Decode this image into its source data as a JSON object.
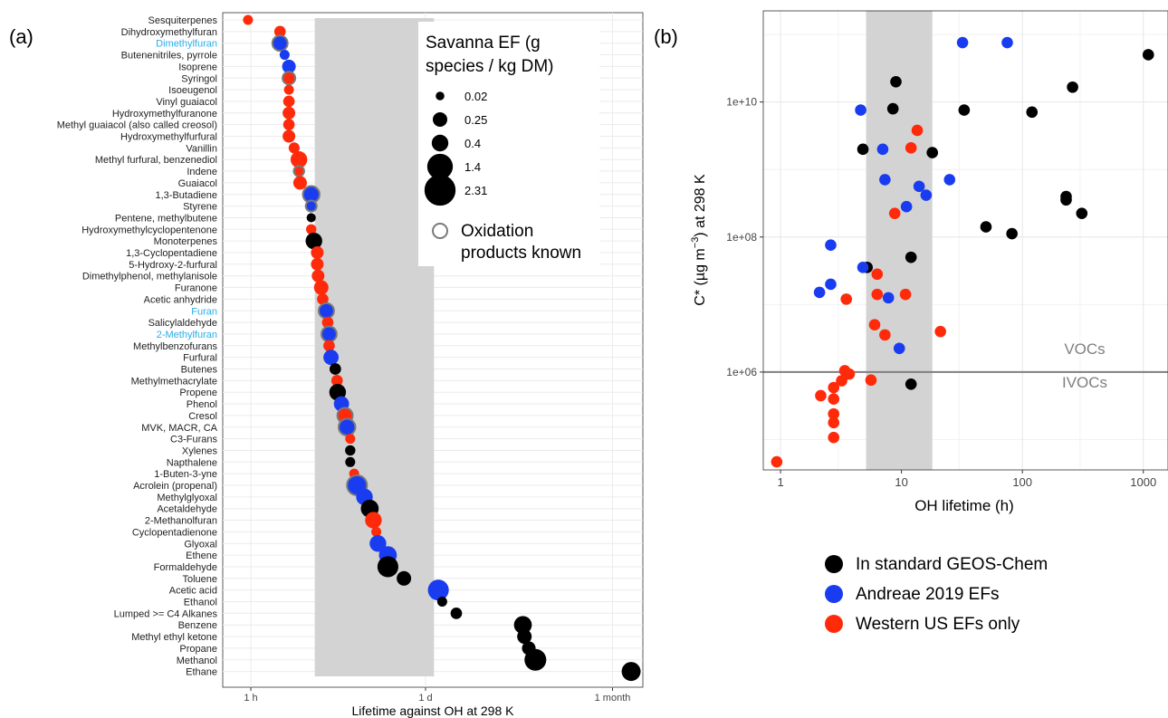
{
  "chart_data": [
    {
      "type": "scatter",
      "panel_label": "(a)",
      "xlabel": "Lifetime against OH at 298 K",
      "x_scale": "log",
      "x_ticks": [
        {
          "label": "1 h",
          "hours": 1
        },
        {
          "label": "1 d",
          "hours": 24
        },
        {
          "label": "1 month",
          "hours": 720
        }
      ],
      "xlim_hours": [
        0.6,
        1250
      ],
      "shaded_band_hours": [
        3.2,
        28
      ],
      "colors": {
        "standard": "#000000",
        "andreae": "#1a3cf0",
        "western": "#ff2a0a",
        "highlight_label": "#29aee6",
        "ring": "#7a7a7a",
        "band": "#d3d3d3",
        "grid": "#ebebeb"
      },
      "size_legend": {
        "title": "Savanna EF (g species / kg DM)",
        "title_lines": [
          "Savanna EF (g",
          "species / kg DM)"
        ],
        "entries": [
          {
            "label": "0.02",
            "value": 0.02
          },
          {
            "label": "0.25",
            "value": 0.25
          },
          {
            "label": "0.4",
            "value": 0.4
          },
          {
            "label": "1.4",
            "value": 1.4
          },
          {
            "label": "2.31",
            "value": 2.31
          }
        ],
        "ring_lines": [
          "Oxidation",
          "products known"
        ]
      },
      "species": [
        {
          "name": "Sesquiterpenes",
          "lifetime_h": 0.95,
          "group": "western",
          "ef": 0.05,
          "ring": false
        },
        {
          "name": "Dihydroxymethylfuran",
          "lifetime_h": 1.7,
          "group": "western",
          "ef": 0.1,
          "ring": false
        },
        {
          "name": "Dimethylfuran",
          "lifetime_h": 1.7,
          "group": "andreae",
          "ef": 0.3,
          "ring": true,
          "highlight": true
        },
        {
          "name": "Butenenitriles, pyrrole",
          "lifetime_h": 1.85,
          "group": "andreae",
          "ef": 0.05,
          "ring": false
        },
        {
          "name": "Isoprene",
          "lifetime_h": 2.0,
          "group": "andreae",
          "ef": 0.2,
          "ring": false
        },
        {
          "name": "Syringol",
          "lifetime_h": 2.0,
          "group": "western",
          "ef": 0.15,
          "ring": true
        },
        {
          "name": "Isoeugenol",
          "lifetime_h": 2.0,
          "group": "western",
          "ef": 0.05,
          "ring": false
        },
        {
          "name": "Vinyl guaiacol",
          "lifetime_h": 2.0,
          "group": "western",
          "ef": 0.1,
          "ring": false
        },
        {
          "name": "Hydroxymethylfuranone",
          "lifetime_h": 2.0,
          "group": "western",
          "ef": 0.15,
          "ring": false
        },
        {
          "name": "Methyl guaiacol (also called creosol)",
          "lifetime_h": 2.0,
          "group": "western",
          "ef": 0.1,
          "ring": false
        },
        {
          "name": "Hydroxymethylfurfural",
          "lifetime_h": 2.0,
          "group": "western",
          "ef": 0.15,
          "ring": false
        },
        {
          "name": "Vanillin",
          "lifetime_h": 2.2,
          "group": "western",
          "ef": 0.08,
          "ring": false
        },
        {
          "name": "Methyl furfural, benzenediol",
          "lifetime_h": 2.4,
          "group": "western",
          "ef": 0.4,
          "ring": false
        },
        {
          "name": "Indene",
          "lifetime_h": 2.4,
          "group": "western",
          "ef": 0.06,
          "ring": true
        },
        {
          "name": "Guaiacol",
          "lifetime_h": 2.45,
          "group": "western",
          "ef": 0.2,
          "ring": false
        },
        {
          "name": "1,3-Butadiene",
          "lifetime_h": 3.0,
          "group": "andreae",
          "ef": 0.4,
          "ring": true
        },
        {
          "name": "Styrene",
          "lifetime_h": 3.0,
          "group": "andreae",
          "ef": 0.08,
          "ring": true
        },
        {
          "name": "Pentene, methylbutene",
          "lifetime_h": 3.0,
          "group": "standard",
          "ef": 0.03,
          "ring": false
        },
        {
          "name": "Hydroxymethylcyclopentenone",
          "lifetime_h": 3.0,
          "group": "western",
          "ef": 0.06,
          "ring": false
        },
        {
          "name": "Monoterpenes",
          "lifetime_h": 3.15,
          "group": "standard",
          "ef": 0.4,
          "ring": false
        },
        {
          "name": "1,3-Cyclopentadiene",
          "lifetime_h": 3.35,
          "group": "western",
          "ef": 0.15,
          "ring": false
        },
        {
          "name": "5-Hydroxy-2-furfural",
          "lifetime_h": 3.35,
          "group": "western",
          "ef": 0.15,
          "ring": false
        },
        {
          "name": "Dimethylphenol, methylanisole",
          "lifetime_h": 3.4,
          "group": "western",
          "ef": 0.15,
          "ring": false
        },
        {
          "name": "Furanone",
          "lifetime_h": 3.6,
          "group": "western",
          "ef": 0.25,
          "ring": false
        },
        {
          "name": "Acetic anhydride",
          "lifetime_h": 3.7,
          "group": "western",
          "ef": 0.1,
          "ring": false
        },
        {
          "name": "Furan",
          "lifetime_h": 3.95,
          "group": "andreae",
          "ef": 0.3,
          "ring": true,
          "highlight": true
        },
        {
          "name": "Salicylaldehyde",
          "lifetime_h": 4.05,
          "group": "western",
          "ef": 0.1,
          "ring": false
        },
        {
          "name": "2-Methylfuran",
          "lifetime_h": 4.15,
          "group": "andreae",
          "ef": 0.3,
          "ring": true,
          "highlight": true
        },
        {
          "name": "Methylbenzofurans",
          "lifetime_h": 4.15,
          "group": "western",
          "ef": 0.1,
          "ring": false
        },
        {
          "name": "Furfural",
          "lifetime_h": 4.3,
          "group": "andreae",
          "ef": 0.3,
          "ring": false
        },
        {
          "name": "Butenes",
          "lifetime_h": 4.65,
          "group": "standard",
          "ef": 0.1,
          "ring": false
        },
        {
          "name": "Methylmethacrylate",
          "lifetime_h": 4.8,
          "group": "western",
          "ef": 0.1,
          "ring": false
        },
        {
          "name": "Propene",
          "lifetime_h": 4.85,
          "group": "standard",
          "ef": 0.4,
          "ring": false
        },
        {
          "name": "Phenol",
          "lifetime_h": 5.2,
          "group": "andreae",
          "ef": 0.3,
          "ring": false
        },
        {
          "name": "Cresol",
          "lifetime_h": 5.55,
          "group": "western",
          "ef": 0.3,
          "ring": true
        },
        {
          "name": "MVK, MACR, CA",
          "lifetime_h": 5.75,
          "group": "andreae",
          "ef": 0.4,
          "ring": true
        },
        {
          "name": "C3-Furans",
          "lifetime_h": 6.1,
          "group": "western",
          "ef": 0.05,
          "ring": false
        },
        {
          "name": "Xylenes",
          "lifetime_h": 6.1,
          "group": "standard",
          "ef": 0.06,
          "ring": false
        },
        {
          "name": "Napthalene",
          "lifetime_h": 6.1,
          "group": "standard",
          "ef": 0.05,
          "ring": false
        },
        {
          "name": "1-Buten-3-yne",
          "lifetime_h": 6.55,
          "group": "western",
          "ef": 0.05,
          "ring": false
        },
        {
          "name": "Acrolein (propenal)",
          "lifetime_h": 6.9,
          "group": "andreae",
          "ef": 0.7,
          "ring": true
        },
        {
          "name": "Methylglyoxal",
          "lifetime_h": 7.9,
          "group": "andreae",
          "ef": 0.4,
          "ring": false
        },
        {
          "name": "Acetaldehyde",
          "lifetime_h": 8.7,
          "group": "standard",
          "ef": 0.5,
          "ring": false
        },
        {
          "name": "2-Methanolfuran",
          "lifetime_h": 9.3,
          "group": "western",
          "ef": 0.4,
          "ring": false
        },
        {
          "name": "Cyclopentadienone",
          "lifetime_h": 9.8,
          "group": "western",
          "ef": 0.05,
          "ring": false
        },
        {
          "name": "Glyoxal",
          "lifetime_h": 10.1,
          "group": "andreae",
          "ef": 0.4,
          "ring": false
        },
        {
          "name": "Ethene",
          "lifetime_h": 12.1,
          "group": "andreae",
          "ef": 0.5,
          "ring": false
        },
        {
          "name": "Formaldehyde",
          "lifetime_h": 12.1,
          "group": "standard",
          "ef": 0.8,
          "ring": false
        },
        {
          "name": "Toluene",
          "lifetime_h": 16.2,
          "group": "standard",
          "ef": 0.25,
          "ring": false
        },
        {
          "name": "Acetic acid",
          "lifetime_h": 30.3,
          "group": "andreae",
          "ef": 0.8,
          "ring": false
        },
        {
          "name": "Ethanol",
          "lifetime_h": 32.5,
          "group": "standard",
          "ef": 0.05,
          "ring": false
        },
        {
          "name": "Lumped >= C4 Alkanes",
          "lifetime_h": 42,
          "group": "standard",
          "ef": 0.1,
          "ring": false
        },
        {
          "name": "Benzene",
          "lifetime_h": 141,
          "group": "standard",
          "ef": 0.5,
          "ring": false
        },
        {
          "name": "Methyl ethyl ketone",
          "lifetime_h": 145,
          "group": "standard",
          "ef": 0.25,
          "ring": false
        },
        {
          "name": "Propane",
          "lifetime_h": 157,
          "group": "standard",
          "ef": 0.2,
          "ring": false
        },
        {
          "name": "Methanol",
          "lifetime_h": 177,
          "group": "standard",
          "ef": 0.9,
          "ring": false
        },
        {
          "name": "Ethane",
          "lifetime_h": 1010,
          "group": "standard",
          "ef": 0.6,
          "ring": false
        }
      ]
    },
    {
      "type": "scatter",
      "panel_label": "(b)",
      "xlabel": "OH lifetime (h)",
      "ylabel": "C* (μg m⁻³) at 298 K",
      "ylabel_parts": {
        "before": "C* (",
        "mu": "µ",
        "mid": "g m",
        "exp": "−3",
        "after": ") at 298 K"
      },
      "x_scale": "log",
      "y_scale": "log",
      "xlim": [
        0.72,
        1600
      ],
      "ylim_log10": [
        4.55,
        11.35
      ],
      "x_ticks": [
        {
          "label": "1",
          "value": 1
        },
        {
          "label": "10",
          "value": 10
        },
        {
          "label": "100",
          "value": 100
        },
        {
          "label": "1000",
          "value": 1000
        }
      ],
      "y_ticks": [
        {
          "label": "1e+06",
          "log10": 6
        },
        {
          "label": "1e+08",
          "log10": 8
        },
        {
          "label": "1e+10",
          "log10": 10
        }
      ],
      "shaded_band": [
        5.1,
        18
      ],
      "hline_log10": 6,
      "region_labels": {
        "above": "VOCs",
        "below": "IVOCs"
      },
      "legend": [
        {
          "label": "In standard GEOS-Chem",
          "color": "#000000"
        },
        {
          "label": "Andreae 2019 EFs",
          "color": "#1a3cf0"
        },
        {
          "label": "Western US EFs only",
          "color": "#ff2a0a"
        }
      ],
      "series": [
        {
          "name": "In standard GEOS-Chem",
          "color": "#000000",
          "points": [
            [
              9,
              10.3
            ],
            [
              8.5,
              9.9
            ],
            [
              4.8,
              9.3
            ],
            [
              18,
              9.25
            ],
            [
              33,
              9.88
            ],
            [
              120,
              9.85
            ],
            [
              260,
              10.22
            ],
            [
              1100,
              10.7
            ],
            [
              230,
              8.6
            ],
            [
              230,
              8.55
            ],
            [
              310,
              8.35
            ],
            [
              50,
              8.15
            ],
            [
              82,
              8.05
            ],
            [
              5.2,
              7.55
            ],
            [
              12,
              7.7
            ],
            [
              12,
              5.82
            ]
          ]
        },
        {
          "name": "Andreae 2019 EFs",
          "color": "#1a3cf0",
          "points": [
            [
              32,
              10.88
            ],
            [
              75,
              10.88
            ],
            [
              4.6,
              9.88
            ],
            [
              7,
              9.3
            ],
            [
              7.3,
              8.85
            ],
            [
              14,
              8.75
            ],
            [
              16,
              8.62
            ],
            [
              25,
              8.85
            ],
            [
              11,
              8.45
            ],
            [
              2.6,
              7.88
            ],
            [
              4.8,
              7.55
            ],
            [
              2.6,
              7.3
            ],
            [
              2.1,
              7.18
            ],
            [
              7.8,
              7.1
            ],
            [
              9.6,
              6.35
            ]
          ]
        },
        {
          "name": "Western US EFs only",
          "color": "#ff2a0a",
          "points": [
            [
              13.5,
              9.58
            ],
            [
              12,
              9.32
            ],
            [
              8.8,
              8.35
            ],
            [
              6.3,
              7.45
            ],
            [
              6.3,
              7.15
            ],
            [
              10.8,
              7.15
            ],
            [
              3.5,
              7.08
            ],
            [
              6,
              6.7
            ],
            [
              7.3,
              6.55
            ],
            [
              21,
              6.6
            ],
            [
              3.4,
              6.02
            ],
            [
              3.2,
              5.87
            ],
            [
              3.7,
              5.97
            ],
            [
              5.6,
              5.88
            ],
            [
              2.75,
              5.77
            ],
            [
              2.15,
              5.65
            ],
            [
              2.75,
              5.6
            ],
            [
              2.75,
              5.38
            ],
            [
              2.75,
              5.25
            ],
            [
              2.75,
              5.03
            ],
            [
              0.93,
              4.67
            ]
          ]
        }
      ]
    }
  ]
}
